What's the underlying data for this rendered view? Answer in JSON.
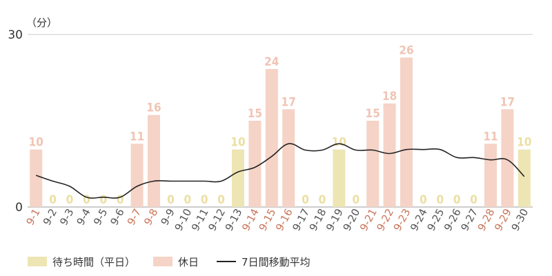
{
  "chart_data": {
    "type": "bar",
    "unit_label": "（分）",
    "y_ticks": [
      0,
      30
    ],
    "ylim": [
      0,
      30
    ],
    "categories": [
      "9-1",
      "9-2",
      "9-3",
      "9-4",
      "9-5",
      "9-6",
      "9-7",
      "9-8",
      "9-9",
      "9-10",
      "9-11",
      "9-12",
      "9-13",
      "9-14",
      "9-15",
      "9-16",
      "9-17",
      "9-18",
      "9-19",
      "9-20",
      "9-21",
      "9-22",
      "9-23",
      "9-24",
      "9-25",
      "9-26",
      "9-27",
      "9-28",
      "9-29",
      "9-30"
    ],
    "day_type": [
      "holiday",
      "weekday",
      "weekday",
      "weekday",
      "weekday",
      "weekday",
      "holiday",
      "holiday",
      "weekday",
      "weekday",
      "weekday",
      "weekday",
      "weekday",
      "holiday",
      "holiday",
      "holiday",
      "weekday",
      "weekday",
      "weekday",
      "weekday",
      "holiday",
      "holiday",
      "holiday",
      "weekday",
      "weekday",
      "weekday",
      "weekday",
      "holiday",
      "holiday",
      "weekday"
    ],
    "values": [
      10,
      0,
      0,
      0,
      0,
      0,
      11,
      16,
      0,
      0,
      0,
      0,
      10,
      15,
      24,
      17,
      0,
      0,
      10,
      0,
      15,
      18,
      26,
      0,
      0,
      0,
      0,
      11,
      17,
      10
    ],
    "moving_average": [
      5.5,
      4.5,
      3.6,
      1.7,
      1.7,
      1.7,
      3.6,
      4.5,
      4.5,
      4.5,
      4.5,
      4.5,
      6.1,
      6.9,
      8.8,
      11.0,
      9.9,
      9.9,
      11.0,
      9.9,
      9.9,
      9.3,
      10.0,
      10.0,
      10.0,
      8.6,
      8.6,
      8.2,
      8.2,
      5.3
    ],
    "series": [
      {
        "name": "待ち時間（平日）",
        "color": "#ede5b3"
      },
      {
        "name": "休日",
        "color": "#f5d3c6"
      },
      {
        "name": "7日間移動平均",
        "color": "#222222"
      }
    ],
    "colors": {
      "weekday_bar": "#ede5b3",
      "holiday_bar": "#f5d3c6",
      "weekday_value": "#ebdfa2",
      "holiday_value": "#f0c4b4",
      "weekday_label": "#555555",
      "holiday_label": "#c9755a",
      "gridline": "#cccccc"
    },
    "legend_position": "bottom-left"
  }
}
